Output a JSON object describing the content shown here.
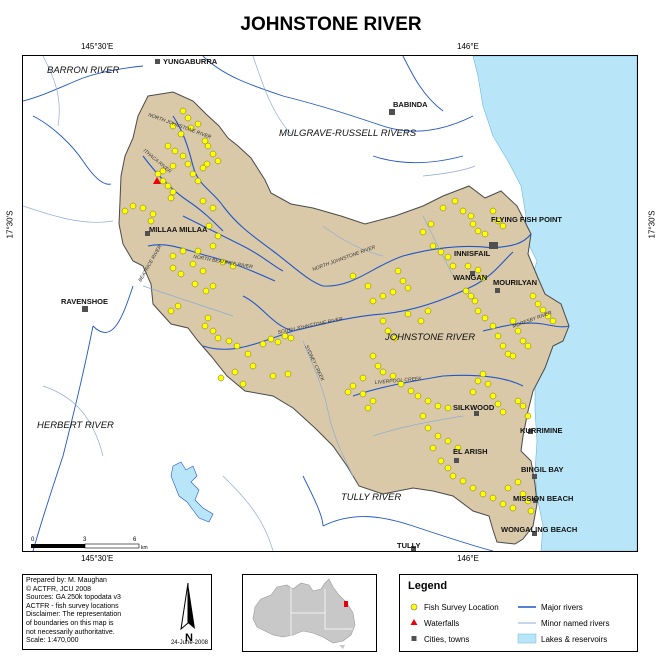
{
  "title": "JOHNSTONE RIVER",
  "graticule": {
    "top_left": "145°30'E",
    "top_right": "146°E",
    "bottom_left": "145°30'E",
    "bottom_right": "146°E",
    "left_lat": "17°30'S",
    "right_lat": "17°30'S"
  },
  "basins": {
    "barron": "BARRON RIVER",
    "mulgrave": "MULGRAVE-RUSSELL RIVERS",
    "herbert": "HERBERT RIVER",
    "tully": "TULLY RIVER",
    "johnstone": "JOHNSTONE RIVER"
  },
  "towns": {
    "yungaburra": "YUNGABURRA",
    "babinda": "BABINDA",
    "millaa": "MILLAA MILLAA",
    "ravenshoe": "RAVENSHOE",
    "flying_fish": "FLYING FISH POINT",
    "innisfail": "INNISFAIL",
    "wangan": "WANGAN",
    "mourilyan": "MOURILYAN",
    "silkwood": "SILKWOOD",
    "kurrimine": "KURRIMINE",
    "el_arish": "EL ARISH",
    "bingil": "BINGIL BAY",
    "mission": "MISSION BEACH",
    "wongaling": "WONGALING BEACH",
    "tully": "TULLY"
  },
  "rivers": {
    "north_johnstone_upper": "NORTH JOHNSTONE RIVER",
    "north_johnstone": "NORTH JOHNSTONE RIVER",
    "south_johnstone": "SOUTH JOHNSTONE RIVER",
    "north_beatrice": "NORTH BEATRICE RIVER",
    "beatrice": "BEATRICE RIVER",
    "liverpool": "LIVERPOOL CREEK",
    "moresby": "MORESBY RIVER",
    "ithaca": "ITHACA RIVER",
    "sydney": "SYDNEY CREEK"
  },
  "scale_bar": {
    "ticks": [
      "0",
      "3",
      "6"
    ],
    "unit": "km"
  },
  "credits": [
    "Prepared by: M. Maughan",
    "©   ACTFR, JCU 2008",
    "Sources: GA 250k topodata v3",
    "ACTFR - fish survey locations",
    "Disclaimer: The representation",
    "of boundaries on this map is",
    "not necessarily authoritative.",
    "Scale:  1:470,000"
  ],
  "north_label": "N",
  "date": "24-June-2008",
  "legend": {
    "title": "Legend",
    "items": {
      "fish": "Fish Survey Location",
      "waterfalls": "Waterfalls",
      "cities": "Cities, towns",
      "major": "Major rivers",
      "minor": "Minor named rivers",
      "lakes": "Lakes & reservoirs"
    }
  },
  "colors": {
    "catchment": "#d9c9a8",
    "ocean": "#b8e6f8",
    "major_river": "#1f56c9",
    "minor_river": "#8eaed4",
    "survey_point": "#ffff00",
    "waterfall": "#e8000b",
    "town": "#505050"
  }
}
